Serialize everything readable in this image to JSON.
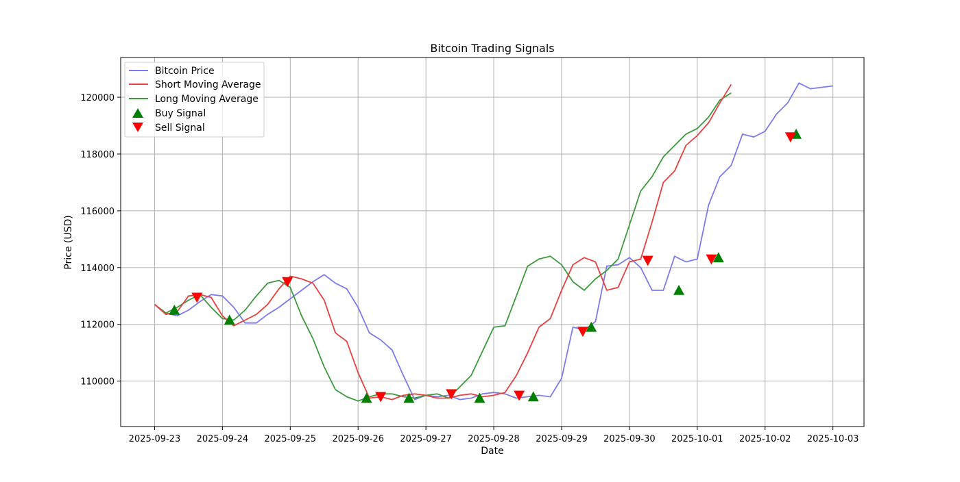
{
  "chart_data": {
    "type": "line",
    "title": "Bitcoin Trading Signals",
    "xlabel": "Date",
    "ylabel": "Price (USD)",
    "x_ticks": [
      "2025-09-23",
      "2025-09-24",
      "2025-09-25",
      "2025-09-26",
      "2025-09-27",
      "2025-09-28",
      "2025-09-29",
      "2025-09-30",
      "2025-10-01",
      "2025-10-02",
      "2025-10-03"
    ],
    "y_ticks": [
      110000,
      112000,
      114000,
      116000,
      118000,
      120000
    ],
    "xlim": [
      "2025-09-22 12:00",
      "2025-10-03 11:00"
    ],
    "ylim": [
      108400,
      121400
    ],
    "grid": true,
    "legend_position": "top-left",
    "colors": {
      "price": "#7b7bef",
      "short_ma": "#e8403f",
      "long_ma": "#3c9a3c",
      "buy": "#008000",
      "sell": "#ff0000",
      "grid": "#b0b0b0"
    },
    "series": [
      {
        "name": "Bitcoin Price",
        "role": "price",
        "points": [
          [
            "2025-09-23 00:00",
            112700
          ],
          [
            "2025-09-23 04:00",
            112400
          ],
          [
            "2025-09-23 08:00",
            112300
          ],
          [
            "2025-09-23 12:00",
            112500
          ],
          [
            "2025-09-23 16:00",
            112800
          ],
          [
            "2025-09-23 20:00",
            113050
          ],
          [
            "2025-09-24 00:00",
            113000
          ],
          [
            "2025-09-24 04:00",
            112600
          ],
          [
            "2025-09-24 08:00",
            112050
          ],
          [
            "2025-09-24 12:00",
            112050
          ],
          [
            "2025-09-24 16:00",
            112350
          ],
          [
            "2025-09-24 20:00",
            112600
          ],
          [
            "2025-09-25 00:00",
            112900
          ],
          [
            "2025-09-25 04:00",
            113200
          ],
          [
            "2025-09-25 08:00",
            113500
          ],
          [
            "2025-09-25 12:00",
            113750
          ],
          [
            "2025-09-25 16:00",
            113450
          ],
          [
            "2025-09-25 20:00",
            113250
          ],
          [
            "2025-09-26 00:00",
            112600
          ],
          [
            "2025-09-26 04:00",
            111700
          ],
          [
            "2025-09-26 08:00",
            111450
          ],
          [
            "2025-09-26 12:00",
            111100
          ],
          [
            "2025-09-26 16:00",
            110200
          ],
          [
            "2025-09-26 20:00",
            109350
          ],
          [
            "2025-09-27 00:00",
            109500
          ],
          [
            "2025-09-27 04:00",
            109450
          ],
          [
            "2025-09-27 08:00",
            109500
          ],
          [
            "2025-09-27 12:00",
            109350
          ],
          [
            "2025-09-27 16:00",
            109400
          ],
          [
            "2025-09-27 20:00",
            109550
          ],
          [
            "2025-09-28 00:00",
            109600
          ],
          [
            "2025-09-28 04:00",
            109550
          ],
          [
            "2025-09-28 08:00",
            109400
          ],
          [
            "2025-09-28 12:00",
            109450
          ],
          [
            "2025-09-28 16:00",
            109500
          ],
          [
            "2025-09-28 20:00",
            109450
          ],
          [
            "2025-09-29 00:00",
            110100
          ],
          [
            "2025-09-29 04:00",
            111900
          ],
          [
            "2025-09-29 08:00",
            111800
          ],
          [
            "2025-09-29 12:00",
            112100
          ],
          [
            "2025-09-29 16:00",
            114050
          ],
          [
            "2025-09-29 20:00",
            114100
          ],
          [
            "2025-09-30 00:00",
            114350
          ],
          [
            "2025-09-30 04:00",
            114000
          ],
          [
            "2025-09-30 08:00",
            113200
          ],
          [
            "2025-09-30 12:00",
            113200
          ],
          [
            "2025-09-30 16:00",
            114400
          ],
          [
            "2025-09-30 20:00",
            114200
          ],
          [
            "2025-10-01 00:00",
            114300
          ],
          [
            "2025-10-01 04:00",
            116200
          ],
          [
            "2025-10-01 08:00",
            117200
          ],
          [
            "2025-10-01 12:00",
            117600
          ],
          [
            "2025-10-01 16:00",
            118700
          ],
          [
            "2025-10-01 20:00",
            118600
          ],
          [
            "2025-10-02 00:00",
            118800
          ],
          [
            "2025-10-02 04:00",
            119400
          ],
          [
            "2025-10-02 08:00",
            119800
          ],
          [
            "2025-10-02 12:00",
            120500
          ],
          [
            "2025-10-02 16:00",
            120300
          ],
          [
            "2025-10-03 00:00",
            120400
          ]
        ]
      },
      {
        "name": "Short Moving Average",
        "role": "short_ma",
        "points": [
          [
            "2025-09-23 00:00",
            112700
          ],
          [
            "2025-09-23 04:00",
            112350
          ],
          [
            "2025-09-23 08:00",
            112450
          ],
          [
            "2025-09-23 12:00",
            113000
          ],
          [
            "2025-09-23 16:00",
            113050
          ],
          [
            "2025-09-23 20:00",
            112950
          ],
          [
            "2025-09-24 00:00",
            112300
          ],
          [
            "2025-09-24 04:00",
            111950
          ],
          [
            "2025-09-24 08:00",
            112150
          ],
          [
            "2025-09-24 12:00",
            112350
          ],
          [
            "2025-09-24 16:00",
            112700
          ],
          [
            "2025-09-24 20:00",
            113250
          ],
          [
            "2025-09-25 00:00",
            113700
          ],
          [
            "2025-09-25 04:00",
            113600
          ],
          [
            "2025-09-25 08:00",
            113450
          ],
          [
            "2025-09-25 12:00",
            112850
          ],
          [
            "2025-09-25 16:00",
            111700
          ],
          [
            "2025-09-25 20:00",
            111400
          ],
          [
            "2025-09-26 00:00",
            110300
          ],
          [
            "2025-09-26 04:00",
            109400
          ],
          [
            "2025-09-26 08:00",
            109450
          ],
          [
            "2025-09-26 12:00",
            109350
          ],
          [
            "2025-09-26 16:00",
            109500
          ],
          [
            "2025-09-26 20:00",
            109550
          ],
          [
            "2025-09-27 00:00",
            109500
          ],
          [
            "2025-09-27 04:00",
            109400
          ],
          [
            "2025-09-27 08:00",
            109400
          ],
          [
            "2025-09-27 12:00",
            109500
          ],
          [
            "2025-09-27 16:00",
            109550
          ],
          [
            "2025-09-27 20:00",
            109450
          ],
          [
            "2025-09-28 00:00",
            109500
          ],
          [
            "2025-09-28 04:00",
            109600
          ],
          [
            "2025-09-28 08:00",
            110200
          ],
          [
            "2025-09-28 12:00",
            111000
          ],
          [
            "2025-09-28 16:00",
            111900
          ],
          [
            "2025-09-28 20:00",
            112200
          ],
          [
            "2025-09-29 00:00",
            113200
          ],
          [
            "2025-09-29 04:00",
            114100
          ],
          [
            "2025-09-29 08:00",
            114350
          ],
          [
            "2025-09-29 12:00",
            114200
          ],
          [
            "2025-09-29 16:00",
            113200
          ],
          [
            "2025-09-29 20:00",
            113300
          ],
          [
            "2025-09-30 00:00",
            114200
          ],
          [
            "2025-09-30 04:00",
            114300
          ],
          [
            "2025-09-30 08:00",
            115600
          ],
          [
            "2025-09-30 12:00",
            117000
          ],
          [
            "2025-09-30 16:00",
            117400
          ],
          [
            "2025-09-30 20:00",
            118300
          ],
          [
            "2025-10-01 00:00",
            118650
          ],
          [
            "2025-10-01 04:00",
            119100
          ],
          [
            "2025-10-01 08:00",
            119800
          ],
          [
            "2025-10-01 12:00",
            120450
          ]
        ]
      },
      {
        "name": "Long Moving Average",
        "role": "long_ma",
        "points": [
          [
            "2025-09-23 00:00",
            112700
          ],
          [
            "2025-09-23 04:00",
            112400
          ],
          [
            "2025-09-23 08:00",
            112600
          ],
          [
            "2025-09-23 12:00",
            112850
          ],
          [
            "2025-09-23 16:00",
            113050
          ],
          [
            "2025-09-23 20:00",
            112600
          ],
          [
            "2025-09-24 00:00",
            112200
          ],
          [
            "2025-09-24 04:00",
            112150
          ],
          [
            "2025-09-24 08:00",
            112500
          ],
          [
            "2025-09-24 12:00",
            113000
          ],
          [
            "2025-09-24 16:00",
            113450
          ],
          [
            "2025-09-24 20:00",
            113550
          ],
          [
            "2025-09-25 00:00",
            113300
          ],
          [
            "2025-09-25 04:00",
            112300
          ],
          [
            "2025-09-25 08:00",
            111500
          ],
          [
            "2025-09-25 12:00",
            110500
          ],
          [
            "2025-09-25 16:00",
            109700
          ],
          [
            "2025-09-25 20:00",
            109450
          ],
          [
            "2025-09-26 00:00",
            109300
          ],
          [
            "2025-09-26 04:00",
            109450
          ],
          [
            "2025-09-26 08:00",
            109550
          ],
          [
            "2025-09-26 12:00",
            109550
          ],
          [
            "2025-09-26 16:00",
            109450
          ],
          [
            "2025-09-26 20:00",
            109400
          ],
          [
            "2025-09-27 00:00",
            109500
          ],
          [
            "2025-09-27 04:00",
            109550
          ],
          [
            "2025-09-27 08:00",
            109400
          ],
          [
            "2025-09-27 12:00",
            109800
          ],
          [
            "2025-09-27 16:00",
            110200
          ],
          [
            "2025-09-27 20:00",
            111050
          ],
          [
            "2025-09-28 00:00",
            111900
          ],
          [
            "2025-09-28 04:00",
            111950
          ],
          [
            "2025-09-28 08:00",
            113000
          ],
          [
            "2025-09-28 12:00",
            114050
          ],
          [
            "2025-09-28 16:00",
            114300
          ],
          [
            "2025-09-28 20:00",
            114400
          ],
          [
            "2025-09-29 00:00",
            114100
          ],
          [
            "2025-09-29 04:00",
            113500
          ],
          [
            "2025-09-29 08:00",
            113200
          ],
          [
            "2025-09-29 12:00",
            113600
          ],
          [
            "2025-09-29 16:00",
            113900
          ],
          [
            "2025-09-29 20:00",
            114300
          ],
          [
            "2025-09-30 00:00",
            115500
          ],
          [
            "2025-09-30 04:00",
            116700
          ],
          [
            "2025-09-30 08:00",
            117200
          ],
          [
            "2025-09-30 12:00",
            117900
          ],
          [
            "2025-09-30 16:00",
            118300
          ],
          [
            "2025-09-30 20:00",
            118700
          ],
          [
            "2025-10-01 00:00",
            118900
          ],
          [
            "2025-10-01 04:00",
            119300
          ],
          [
            "2025-10-01 08:00",
            119900
          ],
          [
            "2025-10-01 12:00",
            120150
          ]
        ]
      }
    ],
    "buy_signals": [
      [
        "2025-09-23 07:00",
        112500
      ],
      [
        "2025-09-24 02:30",
        112150
      ],
      [
        "2025-09-26 03:00",
        109400
      ],
      [
        "2025-09-26 18:00",
        109400
      ],
      [
        "2025-09-27 19:00",
        109400
      ],
      [
        "2025-09-28 14:00",
        109450
      ],
      [
        "2025-09-29 10:30",
        111900
      ],
      [
        "2025-09-30 17:30",
        113200
      ],
      [
        "2025-10-01 07:30",
        114350
      ],
      [
        "2025-10-02 11:00",
        118700
      ]
    ],
    "sell_signals": [
      [
        "2025-09-23 15:00",
        112950
      ],
      [
        "2025-09-24 23:00",
        113500
      ],
      [
        "2025-09-26 08:00",
        109450
      ],
      [
        "2025-09-27 09:00",
        109550
      ],
      [
        "2025-09-28 09:00",
        109500
      ],
      [
        "2025-09-29 07:30",
        111750
      ],
      [
        "2025-09-30 06:30",
        114250
      ],
      [
        "2025-10-01 05:00",
        114300
      ],
      [
        "2025-10-02 09:00",
        118600
      ]
    ]
  }
}
